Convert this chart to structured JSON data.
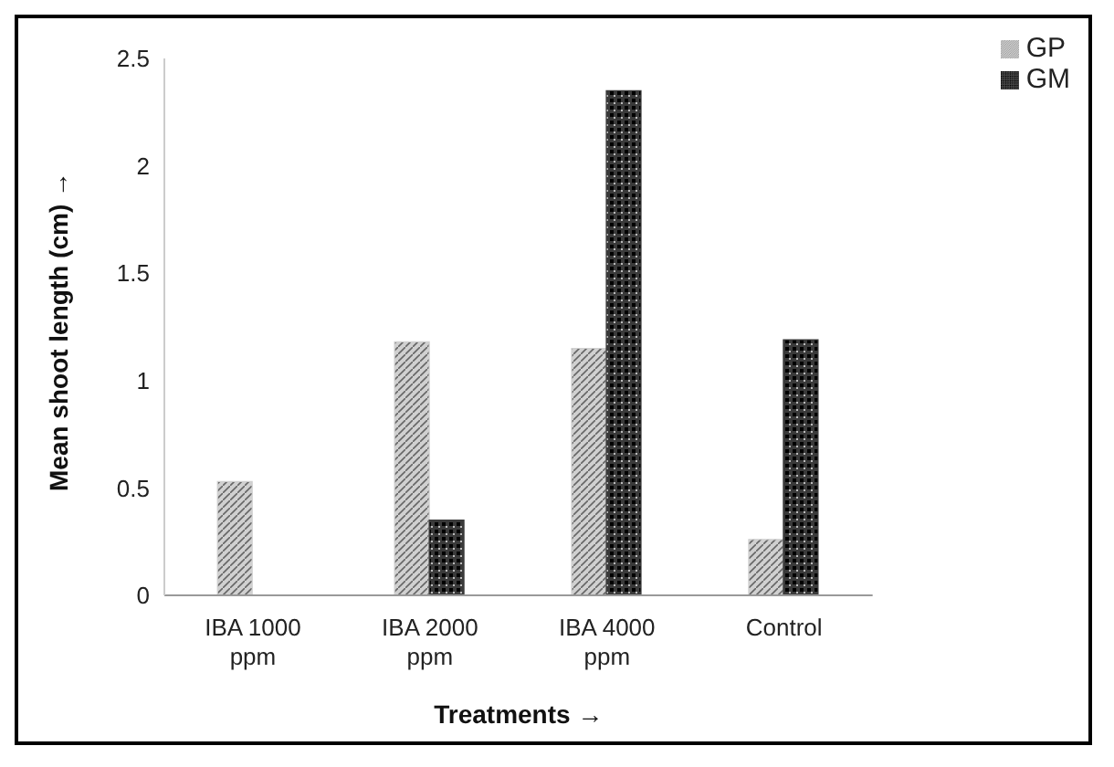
{
  "chart_data": {
    "type": "bar",
    "xlabel": "Treatments →",
    "ylabel": "Mean shoot length (cm) →",
    "categories": [
      "IBA 1000 ppm",
      "IBA 2000 ppm",
      "IBA 4000 ppm",
      "Control"
    ],
    "series": [
      {
        "name": "GP",
        "color": "#d0d0d0",
        "values": [
          0.53,
          1.18,
          1.15,
          0.26
        ]
      },
      {
        "name": "GM",
        "color": "#3a3a3a",
        "values": [
          0,
          0.35,
          2.35,
          1.19
        ]
      }
    ],
    "ylim": [
      0,
      2.5
    ],
    "yticks": [
      0,
      0.5,
      1,
      1.5,
      2,
      2.5
    ],
    "grid": false,
    "legend": "top right"
  }
}
